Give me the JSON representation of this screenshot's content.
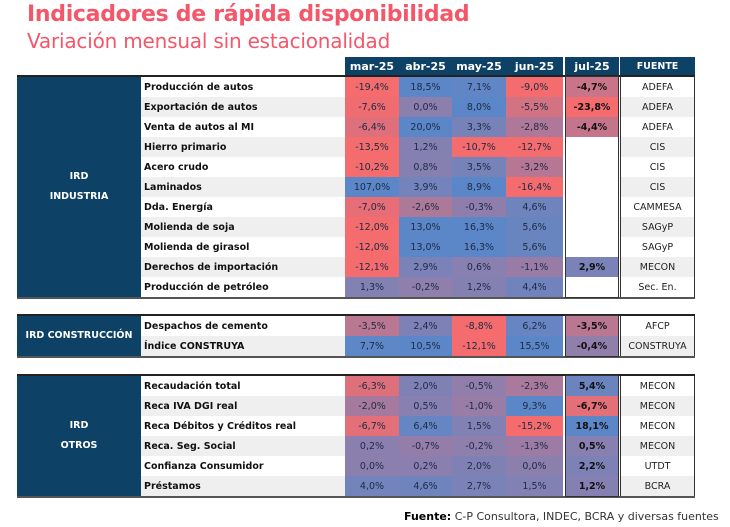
{
  "title": "Indicadores de rápida disponibilidad",
  "subtitle": "Variación mensual sin estacionalidad",
  "columns": [
    "mar-25",
    "abr-25",
    "may-25",
    "jun-25",
    "jul-25",
    "FUENTE"
  ],
  "colors": {
    "header_bg": "#0e4166",
    "title": "#f4566a",
    "negative": "#f46c6e",
    "positive": "#5b87c8",
    "neutral": "#8b7fae"
  },
  "groups": [
    {
      "name_lines": [
        "IRD",
        "INDUSTRIA"
      ],
      "rows": [
        {
          "label": "Producción de autos",
          "values": [
            "-19,4%",
            "18,5%",
            "7,1%",
            "-9,0%",
            "-4,7%"
          ],
          "source": "ADEFA"
        },
        {
          "label": "Exportación de autos",
          "values": [
            "-7,6%",
            "0,0%",
            "8,0%",
            "-5,5%",
            "-23,8%"
          ],
          "source": "ADEFA"
        },
        {
          "label": "Venta de autos al MI",
          "values": [
            "-6,4%",
            "20,0%",
            "3,3%",
            "-2,8%",
            "-4,4%"
          ],
          "source": "ADEFA"
        },
        {
          "label": "Hierro primario",
          "values": [
            "-13,5%",
            "1,2%",
            "-10,7%",
            "-12,7%",
            ""
          ],
          "source": "CIS"
        },
        {
          "label": "Acero crudo",
          "values": [
            "-10,2%",
            "0,8%",
            "3,5%",
            "-3,2%",
            ""
          ],
          "source": "CIS"
        },
        {
          "label": "Laminados",
          "values": [
            "107,0%",
            "3,9%",
            "8,9%",
            "-16,4%",
            ""
          ],
          "source": "CIS"
        },
        {
          "label": "Dda. Energía",
          "values": [
            "-7,0%",
            "-2,6%",
            "-0,3%",
            "4,6%",
            ""
          ],
          "source": "CAMMESA"
        },
        {
          "label": "Molienda de soja",
          "values": [
            "-12,0%",
            "13,0%",
            "16,3%",
            "5,6%",
            ""
          ],
          "source": "SAGyP"
        },
        {
          "label": "Molienda de girasol",
          "values": [
            "-12,0%",
            "13,0%",
            "16,3%",
            "5,6%",
            ""
          ],
          "source": "SAGyP"
        },
        {
          "label": "Derechos de importación",
          "values": [
            "-12,1%",
            "2,9%",
            "0,6%",
            "-1,1%",
            "2,9%"
          ],
          "source": "MECON"
        },
        {
          "label": "Producción de petróleo",
          "values": [
            "1,3%",
            "-0,2%",
            "1,2%",
            "4,4%",
            ""
          ],
          "source": "Sec. En."
        }
      ]
    },
    {
      "name_lines": [
        "IRD CONSTRUCCIÓN"
      ],
      "rows": [
        {
          "label": "Despachos de cemento",
          "values": [
            "-3,5%",
            "2,4%",
            "-8,8%",
            "6,2%",
            "-3,5%"
          ],
          "source": "AFCP"
        },
        {
          "label": "Índice CONSTRUYA",
          "values": [
            "7,7%",
            "10,5%",
            "-12,1%",
            "15,5%",
            "-0,4%"
          ],
          "source": "CONSTRUYA"
        }
      ]
    },
    {
      "name_lines": [
        "IRD",
        "OTROS"
      ],
      "rows": [
        {
          "label": "Recaudación total",
          "values": [
            "-6,3%",
            "2,0%",
            "-0,5%",
            "-2,3%",
            "5,4%"
          ],
          "source": "MECON"
        },
        {
          "label": "Reca IVA DGI real",
          "values": [
            "-2,0%",
            "0,5%",
            "-1,0%",
            "9,3%",
            "-6,7%"
          ],
          "source": "MECON"
        },
        {
          "label": "Reca Débitos y Créditos real",
          "values": [
            "-6,7%",
            "6,4%",
            "1,5%",
            "-15,2%",
            "18,1%"
          ],
          "source": "MECON"
        },
        {
          "label": "Reca. Seg. Social",
          "values": [
            "0,2%",
            "-0,7%",
            "-0,2%",
            "-1,3%",
            "0,5%"
          ],
          "source": "MECON"
        },
        {
          "label": "Confianza Consumidor",
          "values": [
            "0,0%",
            "0,2%",
            "2,0%",
            "0,0%",
            "2,2%"
          ],
          "source": "UTDT"
        },
        {
          "label": "Préstamos",
          "values": [
            "4,0%",
            "4,6%",
            "2,7%",
            "1,5%",
            "1,2%"
          ],
          "source": "BCRA"
        }
      ]
    }
  ],
  "footer": {
    "label": "Fuente:",
    "text": " C-P Consultora, INDEC, BCRA y diversas fuentes"
  }
}
